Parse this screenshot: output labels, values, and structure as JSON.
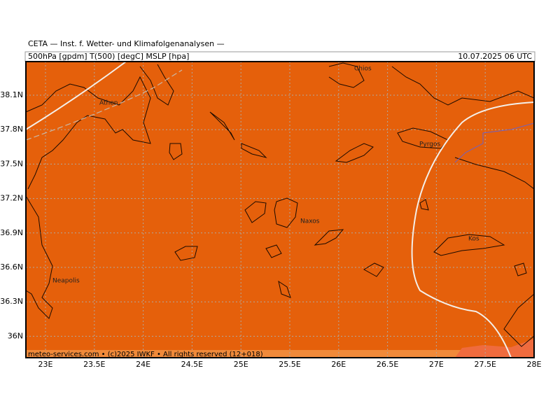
{
  "header": {
    "institute": "CETA — Inst. f. Wetter- und Klimafolgenanalysen —",
    "fields": "500hPa [gpdm] T(500) [degC] MSLP [hpa]",
    "valid_time": "10.07.2025 06 UTC"
  },
  "lat_labels": [
    "38.1N",
    "37.8N",
    "37.5N",
    "37.2N",
    "36.9N",
    "36.6N",
    "36.3N",
    "36N"
  ],
  "lon_labels": [
    "23E",
    "23.5E",
    "24E",
    "24.5E",
    "25E",
    "25.5E",
    "26E",
    "26.5E",
    "27E",
    "27.5E",
    "28E"
  ],
  "places": [
    "Athen",
    "Chios",
    "Pyrgos",
    "Naxos",
    "Kos",
    "Neapolis"
  ],
  "footer": "meteo-services.com • (c)2025 IWKF • All rights reserved (12+018)"
}
